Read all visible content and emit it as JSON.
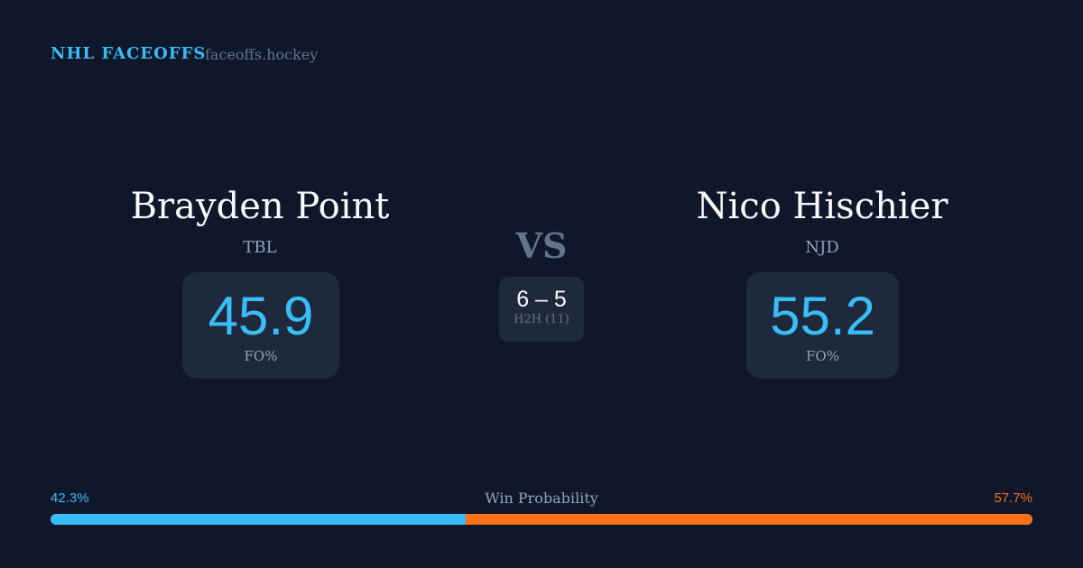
{
  "header": {
    "brand": "NHL FACEOFFS",
    "site": "faceoffs.hockey"
  },
  "players": [
    {
      "name": "Brayden Point",
      "team": "TBL",
      "fo_pct": "45.9",
      "fo_label": "FO%"
    },
    {
      "name": "Nico Hischier",
      "team": "NJD",
      "fo_pct": "55.2",
      "fo_label": "FO%"
    }
  ],
  "versus": {
    "label": "VS",
    "score": "6 – 5",
    "h2h": "H2H (11)"
  },
  "win_probability": {
    "title": "Win Probability",
    "left": "42.3%",
    "right": "57.7%",
    "left_value": 42.3,
    "right_value": 57.7,
    "left_color": "#38bdf8",
    "right_color": "#f97316"
  }
}
